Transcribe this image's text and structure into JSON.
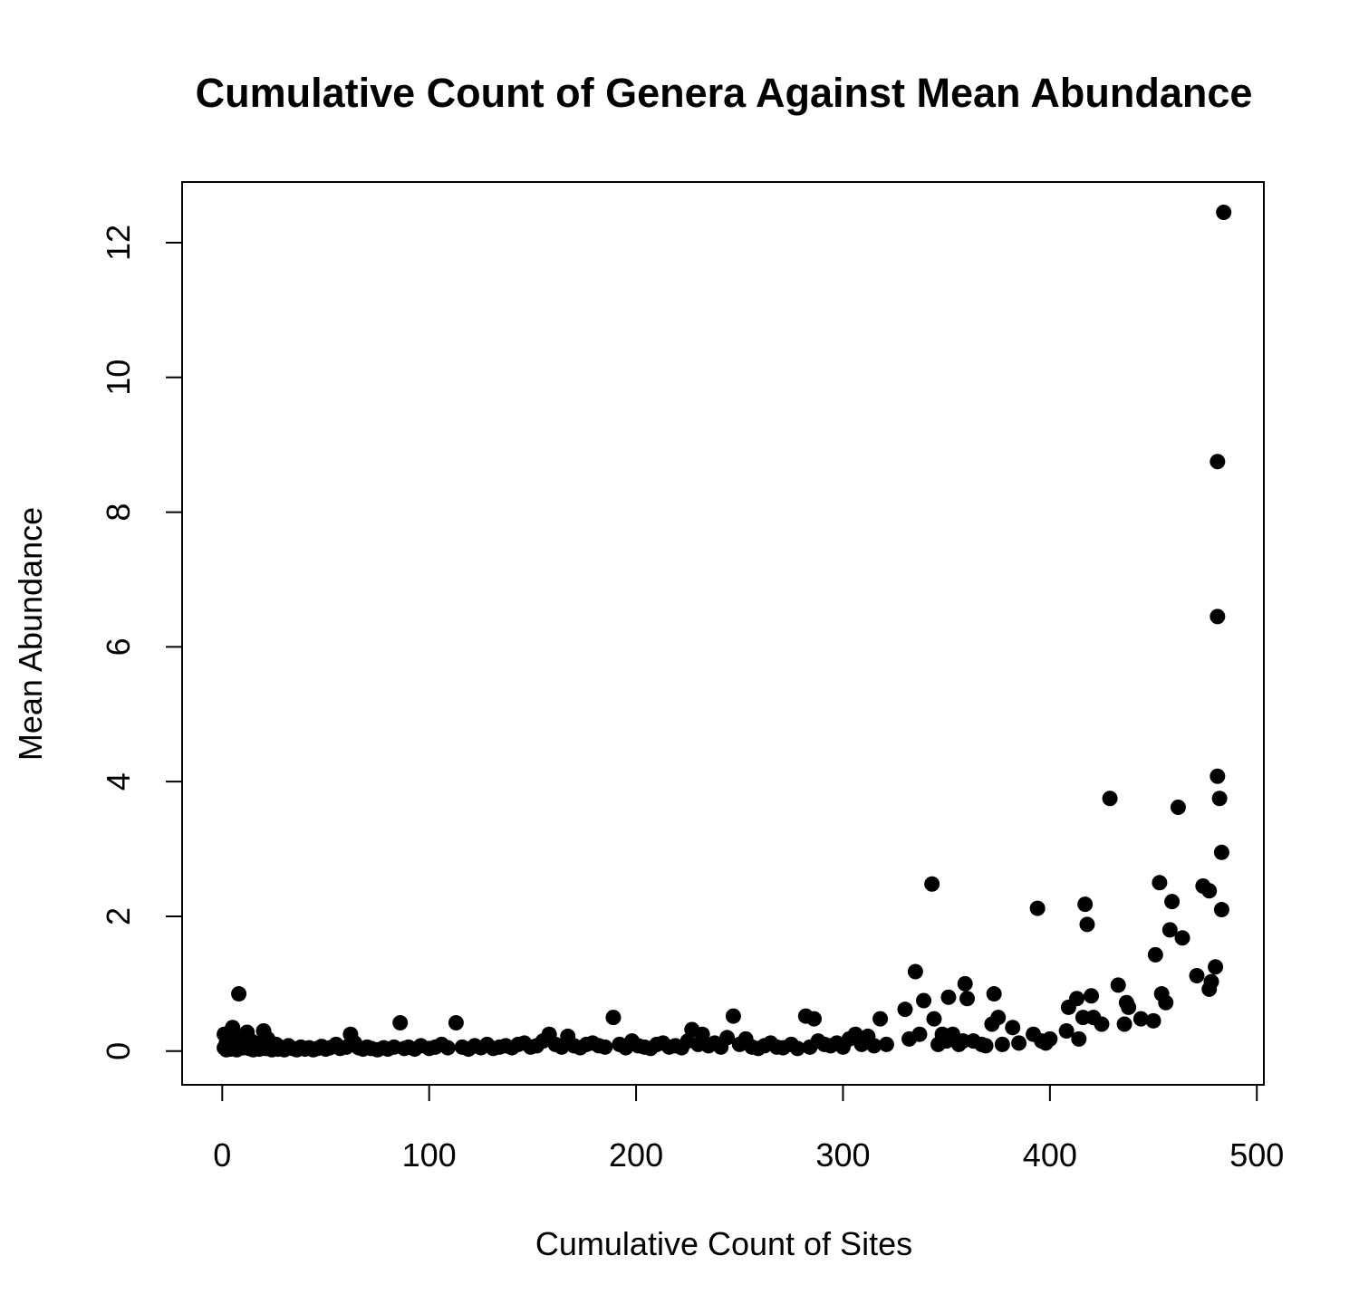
{
  "chart_data": {
    "type": "scatter",
    "title": "Cumulative Count of Genera Against Mean Abundance",
    "xlabel": "Cumulative Count of Sites",
    "ylabel": "Mean Abundance",
    "xlim": [
      -19.4,
      503.4
    ],
    "ylim": [
      -0.5,
      12.9
    ],
    "xticks": [
      0,
      100,
      200,
      300,
      400,
      500
    ],
    "yticks": [
      0,
      2,
      4,
      6,
      8,
      10,
      12
    ],
    "marker_color": "#000000",
    "points": [
      [
        1,
        0.05
      ],
      [
        1,
        0.25
      ],
      [
        2,
        0.02
      ],
      [
        2,
        0.12
      ],
      [
        3,
        0.08
      ],
      [
        4,
        0.03
      ],
      [
        5,
        0.35
      ],
      [
        6,
        0.18
      ],
      [
        7,
        0.02
      ],
      [
        8,
        0.85
      ],
      [
        9,
        0.1
      ],
      [
        10,
        0.05
      ],
      [
        11,
        0.22
      ],
      [
        12,
        0.28
      ],
      [
        13,
        0.04
      ],
      [
        14,
        0.15
      ],
      [
        15,
        0.02
      ],
      [
        16,
        0.12
      ],
      [
        17,
        0.06
      ],
      [
        18,
        0.03
      ],
      [
        19,
        0.1
      ],
      [
        20,
        0.3
      ],
      [
        21,
        0.04
      ],
      [
        22,
        0.18
      ],
      [
        23,
        0.08
      ],
      [
        24,
        0.02
      ],
      [
        25,
        0.05
      ],
      [
        26,
        0.1
      ],
      [
        27,
        0.03
      ],
      [
        28,
        0.06
      ],
      [
        30,
        0.02
      ],
      [
        32,
        0.08
      ],
      [
        34,
        0.04
      ],
      [
        36,
        0.02
      ],
      [
        38,
        0.06
      ],
      [
        40,
        0.03
      ],
      [
        42,
        0.05
      ],
      [
        44,
        0.02
      ],
      [
        46,
        0.04
      ],
      [
        48,
        0.07
      ],
      [
        50,
        0.03
      ],
      [
        52,
        0.05
      ],
      [
        55,
        0.1
      ],
      [
        57,
        0.04
      ],
      [
        60,
        0.06
      ],
      [
        62,
        0.25
      ],
      [
        64,
        0.12
      ],
      [
        66,
        0.05
      ],
      [
        68,
        0.03
      ],
      [
        70,
        0.06
      ],
      [
        72,
        0.04
      ],
      [
        75,
        0.02
      ],
      [
        78,
        0.05
      ],
      [
        80,
        0.03
      ],
      [
        83,
        0.06
      ],
      [
        86,
        0.42
      ],
      [
        88,
        0.04
      ],
      [
        90,
        0.06
      ],
      [
        93,
        0.03
      ],
      [
        96,
        0.08
      ],
      [
        100,
        0.04
      ],
      [
        103,
        0.06
      ],
      [
        106,
        0.1
      ],
      [
        109,
        0.05
      ],
      [
        113,
        0.42
      ],
      [
        116,
        0.06
      ],
      [
        119,
        0.03
      ],
      [
        122,
        0.08
      ],
      [
        125,
        0.05
      ],
      [
        128,
        0.1
      ],
      [
        131,
        0.04
      ],
      [
        134,
        0.06
      ],
      [
        137,
        0.08
      ],
      [
        140,
        0.05
      ],
      [
        143,
        0.1
      ],
      [
        146,
        0.12
      ],
      [
        149,
        0.06
      ],
      [
        152,
        0.08
      ],
      [
        155,
        0.15
      ],
      [
        158,
        0.25
      ],
      [
        161,
        0.1
      ],
      [
        164,
        0.06
      ],
      [
        167,
        0.22
      ],
      [
        170,
        0.08
      ],
      [
        173,
        0.05
      ],
      [
        176,
        0.1
      ],
      [
        179,
        0.12
      ],
      [
        182,
        0.08
      ],
      [
        185,
        0.06
      ],
      [
        189,
        0.5
      ],
      [
        192,
        0.1
      ],
      [
        195,
        0.05
      ],
      [
        198,
        0.15
      ],
      [
        201,
        0.08
      ],
      [
        204,
        0.06
      ],
      [
        207,
        0.04
      ],
      [
        210,
        0.1
      ],
      [
        213,
        0.12
      ],
      [
        216,
        0.06
      ],
      [
        219,
        0.08
      ],
      [
        222,
        0.05
      ],
      [
        225,
        0.15
      ],
      [
        227,
        0.32
      ],
      [
        230,
        0.1
      ],
      [
        232,
        0.25
      ],
      [
        235,
        0.08
      ],
      [
        238,
        0.12
      ],
      [
        241,
        0.06
      ],
      [
        244,
        0.2
      ],
      [
        247,
        0.52
      ],
      [
        250,
        0.1
      ],
      [
        253,
        0.18
      ],
      [
        256,
        0.06
      ],
      [
        259,
        0.04
      ],
      [
        262,
        0.08
      ],
      [
        265,
        0.12
      ],
      [
        268,
        0.06
      ],
      [
        271,
        0.05
      ],
      [
        275,
        0.1
      ],
      [
        278,
        0.04
      ],
      [
        282,
        0.52
      ],
      [
        284,
        0.06
      ],
      [
        286,
        0.48
      ],
      [
        288,
        0.15
      ],
      [
        291,
        0.1
      ],
      [
        294,
        0.08
      ],
      [
        297,
        0.12
      ],
      [
        300,
        0.06
      ],
      [
        303,
        0.18
      ],
      [
        306,
        0.25
      ],
      [
        309,
        0.1
      ],
      [
        312,
        0.22
      ],
      [
        315,
        0.08
      ],
      [
        318,
        0.48
      ],
      [
        321,
        0.1
      ],
      [
        330,
        0.62
      ],
      [
        332,
        0.18
      ],
      [
        335,
        1.18
      ],
      [
        337,
        0.25
      ],
      [
        339,
        0.75
      ],
      [
        343,
        2.48
      ],
      [
        344,
        0.48
      ],
      [
        346,
        0.1
      ],
      [
        348,
        0.25
      ],
      [
        350,
        0.15
      ],
      [
        351,
        0.8
      ],
      [
        353,
        0.25
      ],
      [
        356,
        0.1
      ],
      [
        358,
        0.15
      ],
      [
        359,
        1.0
      ],
      [
        360,
        0.78
      ],
      [
        363,
        0.15
      ],
      [
        367,
        0.1
      ],
      [
        369,
        0.08
      ],
      [
        372,
        0.4
      ],
      [
        373,
        0.85
      ],
      [
        375,
        0.5
      ],
      [
        377,
        0.1
      ],
      [
        382,
        0.35
      ],
      [
        385,
        0.12
      ],
      [
        392,
        0.25
      ],
      [
        394,
        2.12
      ],
      [
        396,
        0.15
      ],
      [
        398,
        0.12
      ],
      [
        400,
        0.18
      ],
      [
        408,
        0.3
      ],
      [
        409,
        0.65
      ],
      [
        413,
        0.78
      ],
      [
        414,
        0.18
      ],
      [
        416,
        0.5
      ],
      [
        417,
        2.18
      ],
      [
        418,
        1.88
      ],
      [
        420,
        0.82
      ],
      [
        421,
        0.5
      ],
      [
        425,
        0.4
      ],
      [
        429,
        3.75
      ],
      [
        433,
        0.98
      ],
      [
        436,
        0.4
      ],
      [
        437,
        0.72
      ],
      [
        438,
        0.65
      ],
      [
        444,
        0.48
      ],
      [
        450,
        0.45
      ],
      [
        451,
        1.43
      ],
      [
        453,
        2.5
      ],
      [
        454,
        0.85
      ],
      [
        456,
        0.72
      ],
      [
        458,
        1.8
      ],
      [
        459,
        2.22
      ],
      [
        462,
        3.62
      ],
      [
        464,
        1.68
      ],
      [
        471,
        1.12
      ],
      [
        474,
        2.45
      ],
      [
        477,
        2.38
      ],
      [
        477,
        0.92
      ],
      [
        478,
        1.03
      ],
      [
        480,
        1.25
      ],
      [
        481,
        4.08
      ],
      [
        481,
        6.45
      ],
      [
        481,
        8.75
      ],
      [
        482,
        3.75
      ],
      [
        483,
        2.95
      ],
      [
        483,
        2.1
      ],
      [
        484,
        12.45
      ]
    ]
  }
}
